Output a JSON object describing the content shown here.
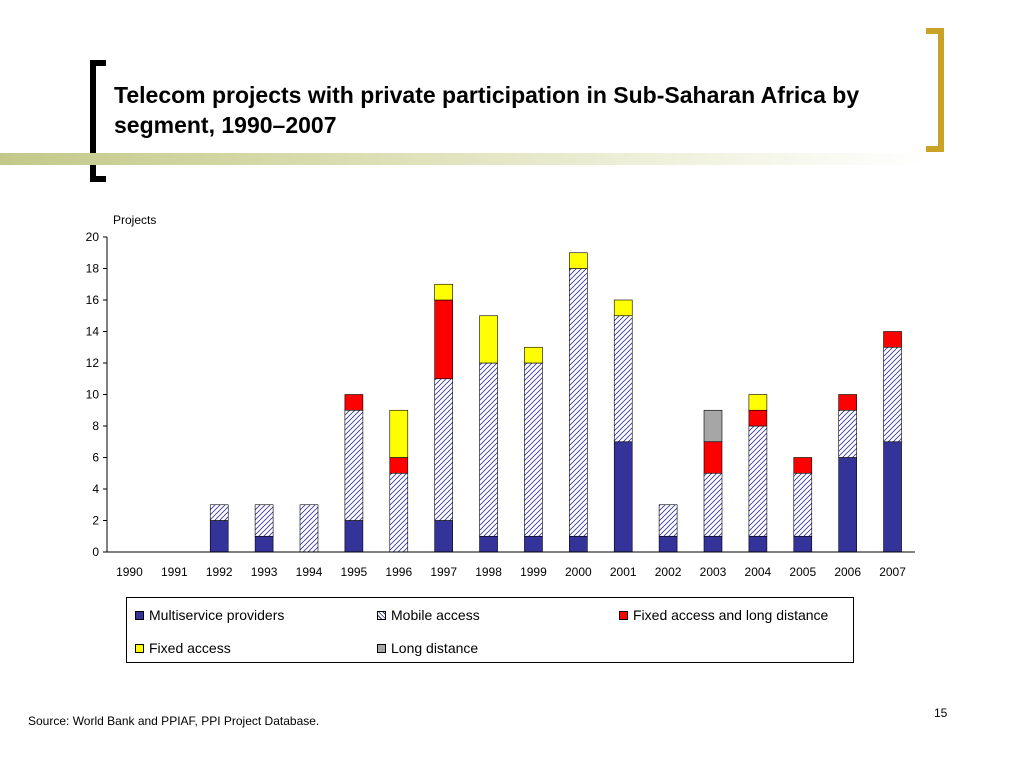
{
  "slide": {
    "title": "Telecom projects with private participation in Sub-Saharan Africa by segment, 1990–2007",
    "source": "Source: World Bank and PPIAF, PPI Project Database.",
    "page_number": "15"
  },
  "legend": {
    "items": [
      {
        "label": "Multiservice providers",
        "color": "#333399",
        "pattern": "solid"
      },
      {
        "label": "Mobile access",
        "color": "#ffffff",
        "pattern": "diagonal-hatch"
      },
      {
        "label": "Fixed access and long distance",
        "color": "#ff0000",
        "pattern": "solid"
      },
      {
        "label": "Fixed access",
        "color": "#ffff00",
        "pattern": "solid"
      },
      {
        "label": "Long distance",
        "color": "#a6a6a6",
        "pattern": "solid"
      }
    ]
  },
  "chart_data": {
    "type": "bar",
    "stacked": true,
    "title": "",
    "xlabel": "",
    "ylabel": "Projects",
    "ylim": [
      0,
      20
    ],
    "yticks": [
      0,
      2,
      4,
      6,
      8,
      10,
      12,
      14,
      16,
      18,
      20
    ],
    "grid": false,
    "legend_position": "bottom",
    "categories": [
      "1990",
      "1991",
      "1992",
      "1993",
      "1994",
      "1995",
      "1996",
      "1997",
      "1998",
      "1999",
      "2000",
      "2001",
      "2002",
      "2003",
      "2004",
      "2005",
      "2006",
      "2007"
    ],
    "series": [
      {
        "name": "Multiservice providers",
        "color": "#333399",
        "values": [
          0,
          0,
          2,
          1,
          0,
          2,
          0,
          2,
          1,
          1,
          1,
          7,
          1,
          1,
          1,
          1,
          6,
          7
        ]
      },
      {
        "name": "Mobile access",
        "color": "#ffffff",
        "values": [
          0,
          0,
          1,
          2,
          3,
          7,
          5,
          9,
          11,
          11,
          17,
          8,
          2,
          4,
          7,
          4,
          3,
          6
        ]
      },
      {
        "name": "Fixed access and long distance",
        "color": "#ff0000",
        "values": [
          0,
          0,
          0,
          0,
          0,
          1,
          1,
          5,
          0,
          0,
          0,
          0,
          0,
          2,
          1,
          1,
          1,
          1
        ]
      },
      {
        "name": "Fixed access",
        "color": "#ffff00",
        "values": [
          0,
          0,
          0,
          0,
          0,
          0,
          3,
          1,
          3,
          1,
          1,
          1,
          0,
          0,
          1,
          0,
          0,
          0
        ]
      },
      {
        "name": "Long distance",
        "color": "#a6a6a6",
        "values": [
          0,
          0,
          0,
          0,
          0,
          0,
          0,
          0,
          0,
          0,
          0,
          0,
          0,
          2,
          0,
          0,
          0,
          0
        ]
      }
    ]
  }
}
